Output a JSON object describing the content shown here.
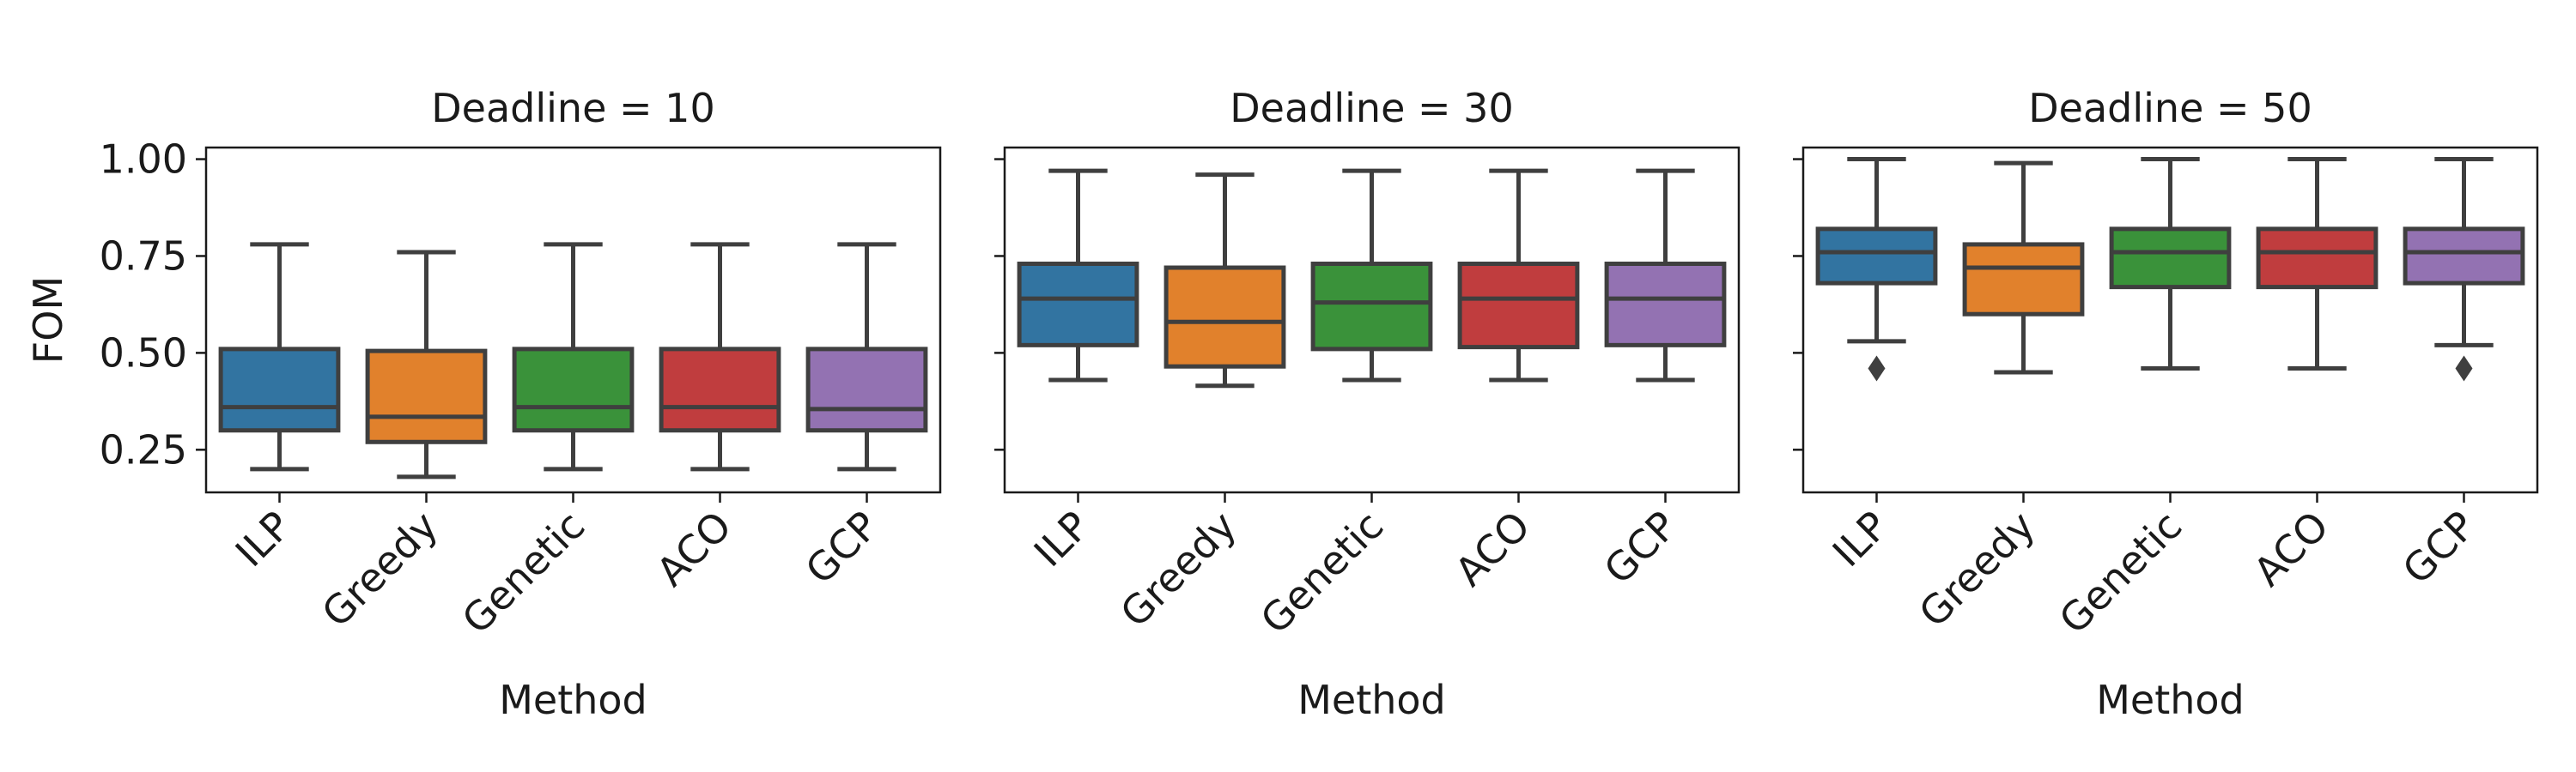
{
  "chart_data": [
    {
      "type": "box",
      "title": "Deadline = 10",
      "xlabel": "Method",
      "ylabel": "FOM",
      "ylim": [
        0.14,
        1.03
      ],
      "yticks": [
        "0.25",
        "0.50",
        "0.75",
        "1.00"
      ],
      "show_ytick_labels": true,
      "categories": [
        "ILP",
        "Greedy",
        "Genetic",
        "ACO",
        "GCP"
      ],
      "boxes": [
        {
          "whislo": 0.2,
          "q1": 0.3,
          "med": 0.36,
          "q3": 0.51,
          "whishi": 0.78,
          "fliers": []
        },
        {
          "whislo": 0.18,
          "q1": 0.27,
          "med": 0.335,
          "q3": 0.505,
          "whishi": 0.76,
          "fliers": []
        },
        {
          "whislo": 0.2,
          "q1": 0.3,
          "med": 0.36,
          "q3": 0.51,
          "whishi": 0.78,
          "fliers": []
        },
        {
          "whislo": 0.2,
          "q1": 0.3,
          "med": 0.36,
          "q3": 0.51,
          "whishi": 0.78,
          "fliers": []
        },
        {
          "whislo": 0.2,
          "q1": 0.3,
          "med": 0.355,
          "q3": 0.51,
          "whishi": 0.78,
          "fliers": []
        }
      ]
    },
    {
      "type": "box",
      "title": "Deadline = 30",
      "xlabel": "Method",
      "ylabel": "",
      "ylim": [
        0.14,
        1.03
      ],
      "yticks": [
        "0.25",
        "0.50",
        "0.75",
        "1.00"
      ],
      "show_ytick_labels": false,
      "categories": [
        "ILP",
        "Greedy",
        "Genetic",
        "ACO",
        "GCP"
      ],
      "boxes": [
        {
          "whislo": 0.43,
          "q1": 0.52,
          "med": 0.64,
          "q3": 0.73,
          "whishi": 0.97,
          "fliers": []
        },
        {
          "whislo": 0.415,
          "q1": 0.465,
          "med": 0.58,
          "q3": 0.72,
          "whishi": 0.96,
          "fliers": []
        },
        {
          "whislo": 0.43,
          "q1": 0.51,
          "med": 0.63,
          "q3": 0.73,
          "whishi": 0.97,
          "fliers": []
        },
        {
          "whislo": 0.43,
          "q1": 0.515,
          "med": 0.64,
          "q3": 0.73,
          "whishi": 0.97,
          "fliers": []
        },
        {
          "whislo": 0.43,
          "q1": 0.52,
          "med": 0.64,
          "q3": 0.73,
          "whishi": 0.97,
          "fliers": []
        }
      ]
    },
    {
      "type": "box",
      "title": "Deadline = 50",
      "xlabel": "Method",
      "ylabel": "",
      "ylim": [
        0.14,
        1.03
      ],
      "yticks": [
        "0.25",
        "0.50",
        "0.75",
        "1.00"
      ],
      "show_ytick_labels": false,
      "categories": [
        "ILP",
        "Greedy",
        "Genetic",
        "ACO",
        "GCP"
      ],
      "boxes": [
        {
          "whislo": 0.53,
          "q1": 0.68,
          "med": 0.76,
          "q3": 0.82,
          "whishi": 1.0,
          "fliers": [
            0.46
          ]
        },
        {
          "whislo": 0.45,
          "q1": 0.6,
          "med": 0.72,
          "q3": 0.78,
          "whishi": 0.99,
          "fliers": []
        },
        {
          "whislo": 0.46,
          "q1": 0.67,
          "med": 0.76,
          "q3": 0.82,
          "whishi": 1.0,
          "fliers": []
        },
        {
          "whislo": 0.46,
          "q1": 0.67,
          "med": 0.76,
          "q3": 0.82,
          "whishi": 1.0,
          "fliers": []
        },
        {
          "whislo": 0.52,
          "q1": 0.68,
          "med": 0.76,
          "q3": 0.82,
          "whishi": 1.0,
          "fliers": [
            0.46
          ]
        }
      ]
    }
  ],
  "colors": {
    "boxes": [
      "#3274a1",
      "#e1812c",
      "#3a923a",
      "#c03d3e",
      "#9372b2"
    ],
    "lines": "#3f3f3f",
    "axes": "#1a1a1a"
  }
}
